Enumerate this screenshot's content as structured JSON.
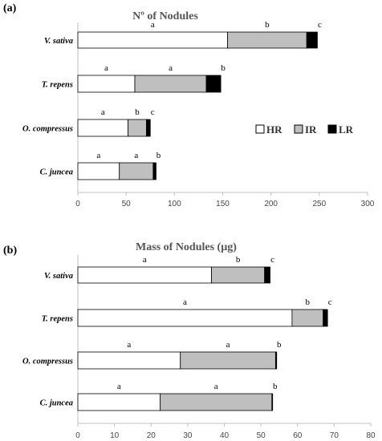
{
  "colors": {
    "HR": "#ffffff",
    "IR": "#bfbfbf",
    "LR": "#000000",
    "outline": "#000000",
    "axis": "#bfbfbf"
  },
  "legend": [
    {
      "key": "HR",
      "label": "HR"
    },
    {
      "key": "IR",
      "label": "IR"
    },
    {
      "key": "LR",
      "label": "LR"
    }
  ],
  "chart_data": [
    {
      "type": "bar",
      "orientation": "horizontal",
      "stacked": true,
      "panel_label": "(a)",
      "title": "Nº of Nodules",
      "categories": [
        "V. sativa",
        "T. repens",
        "O. compressus",
        "C. juncea"
      ],
      "series": [
        {
          "name": "HR",
          "values": [
            155,
            59,
            52,
            43
          ],
          "letters": [
            "a",
            "a",
            "a",
            "a"
          ]
        },
        {
          "name": "IR",
          "values": [
            82,
            74,
            19,
            35
          ],
          "letters": [
            "b",
            "a",
            "b",
            "a"
          ]
        },
        {
          "name": "LR",
          "values": [
            11,
            15,
            4,
            3
          ],
          "letters": [
            "c",
            "b",
            "c",
            "b"
          ]
        }
      ],
      "xlim": [
        0,
        300
      ],
      "xticks": [
        "0",
        "50",
        "100",
        "150",
        "200",
        "250",
        "300"
      ],
      "legend_position": "right"
    },
    {
      "type": "bar",
      "orientation": "horizontal",
      "stacked": true,
      "panel_label": "(b)",
      "title": "Mass of Nodules (µg)",
      "categories": [
        "V. sativa",
        "T. repens",
        "O. compressus",
        "C. juncea"
      ],
      "series": [
        {
          "name": "HR",
          "values": [
            36.5,
            58.5,
            28,
            22.5
          ],
          "letters": [
            "a",
            "a",
            "a",
            "a"
          ]
        },
        {
          "name": "IR",
          "values": [
            14.5,
            8.5,
            26,
            30.5
          ],
          "letters": [
            "b",
            "b",
            "a",
            "a"
          ]
        },
        {
          "name": "LR",
          "values": [
            1.5,
            1.2,
            0.3,
            0.2
          ],
          "letters": [
            "c",
            "c",
            "b",
            "b"
          ]
        }
      ],
      "xlim": [
        0,
        80
      ],
      "xticks": [
        "0",
        "10",
        "20",
        "30",
        "40",
        "50",
        "60",
        "70",
        "80"
      ]
    }
  ]
}
